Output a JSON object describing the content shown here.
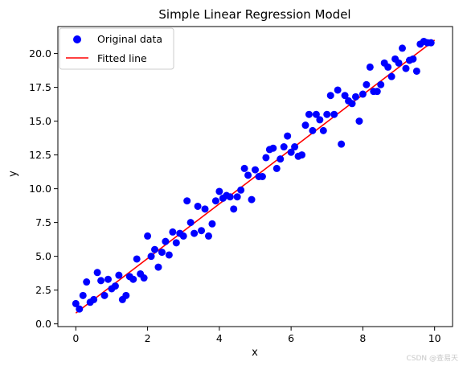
{
  "watermark": "CSDN @查易天",
  "chart_data": {
    "type": "scatter",
    "title": "Simple Linear Regression Model",
    "xlabel": "x",
    "ylabel": "y",
    "xlim": [
      -0.5,
      10.5
    ],
    "ylim": [
      -0.2,
      22.0
    ],
    "xticks": [
      0,
      2,
      4,
      6,
      8,
      10
    ],
    "xtick_labels": [
      "0",
      "2",
      "4",
      "6",
      "8",
      "10"
    ],
    "yticks": [
      0.0,
      2.5,
      5.0,
      7.5,
      10.0,
      12.5,
      15.0,
      17.5,
      20.0
    ],
    "ytick_labels": [
      "0.0",
      "2.5",
      "5.0",
      "7.5",
      "10.0",
      "12.5",
      "15.0",
      "17.5",
      "20.0"
    ],
    "grid": false,
    "legend_position": "top-left",
    "series": [
      {
        "name": "Original data",
        "kind": "scatter",
        "color": "#0000ff",
        "points": [
          [
            0.0,
            1.5
          ],
          [
            0.1,
            1.1
          ],
          [
            0.2,
            2.1
          ],
          [
            0.3,
            3.1
          ],
          [
            0.4,
            1.6
          ],
          [
            0.5,
            1.8
          ],
          [
            0.6,
            3.8
          ],
          [
            0.7,
            3.2
          ],
          [
            0.8,
            2.1
          ],
          [
            0.9,
            3.3
          ],
          [
            1.0,
            2.6
          ],
          [
            1.1,
            2.8
          ],
          [
            1.2,
            3.6
          ],
          [
            1.3,
            1.8
          ],
          [
            1.4,
            2.1
          ],
          [
            1.5,
            3.5
          ],
          [
            1.6,
            3.3
          ],
          [
            1.7,
            4.8
          ],
          [
            1.8,
            3.7
          ],
          [
            1.9,
            3.4
          ],
          [
            2.0,
            6.5
          ],
          [
            2.1,
            5.0
          ],
          [
            2.2,
            5.5
          ],
          [
            2.3,
            4.2
          ],
          [
            2.4,
            5.3
          ],
          [
            2.5,
            6.1
          ],
          [
            2.6,
            5.1
          ],
          [
            2.7,
            6.8
          ],
          [
            2.8,
            6.0
          ],
          [
            2.9,
            6.7
          ],
          [
            3.0,
            6.5
          ],
          [
            3.1,
            9.1
          ],
          [
            3.2,
            7.5
          ],
          [
            3.3,
            6.7
          ],
          [
            3.4,
            8.7
          ],
          [
            3.5,
            6.9
          ],
          [
            3.6,
            8.5
          ],
          [
            3.7,
            6.5
          ],
          [
            3.8,
            7.4
          ],
          [
            3.9,
            9.1
          ],
          [
            4.0,
            9.8
          ],
          [
            4.1,
            9.3
          ],
          [
            4.2,
            9.5
          ],
          [
            4.3,
            9.4
          ],
          [
            4.4,
            8.5
          ],
          [
            4.5,
            9.4
          ],
          [
            4.6,
            9.9
          ],
          [
            4.7,
            11.5
          ],
          [
            4.8,
            11.0
          ],
          [
            4.9,
            9.2
          ],
          [
            5.0,
            11.4
          ],
          [
            5.1,
            10.9
          ],
          [
            5.2,
            10.9
          ],
          [
            5.3,
            12.3
          ],
          [
            5.4,
            12.9
          ],
          [
            5.5,
            13.0
          ],
          [
            5.6,
            11.5
          ],
          [
            5.7,
            12.2
          ],
          [
            5.8,
            13.1
          ],
          [
            5.9,
            13.9
          ],
          [
            6.0,
            12.7
          ],
          [
            6.1,
            13.1
          ],
          [
            6.2,
            12.4
          ],
          [
            6.3,
            12.5
          ],
          [
            6.4,
            14.7
          ],
          [
            6.5,
            15.5
          ],
          [
            6.6,
            14.3
          ],
          [
            6.7,
            15.5
          ],
          [
            6.8,
            15.1
          ],
          [
            6.9,
            14.3
          ],
          [
            7.0,
            15.5
          ],
          [
            7.1,
            16.9
          ],
          [
            7.2,
            15.5
          ],
          [
            7.3,
            17.3
          ],
          [
            7.4,
            13.3
          ],
          [
            7.5,
            16.9
          ],
          [
            7.6,
            16.5
          ],
          [
            7.7,
            16.3
          ],
          [
            7.8,
            16.8
          ],
          [
            7.9,
            15.0
          ],
          [
            8.0,
            17.0
          ],
          [
            8.1,
            17.7
          ],
          [
            8.2,
            19.0
          ],
          [
            8.3,
            17.2
          ],
          [
            8.4,
            17.2
          ],
          [
            8.5,
            17.7
          ],
          [
            8.6,
            19.3
          ],
          [
            8.7,
            19.0
          ],
          [
            8.8,
            18.3
          ],
          [
            8.9,
            19.6
          ],
          [
            9.0,
            19.3
          ],
          [
            9.1,
            20.4
          ],
          [
            9.2,
            18.9
          ],
          [
            9.3,
            19.5
          ],
          [
            9.4,
            19.6
          ],
          [
            9.5,
            18.7
          ],
          [
            9.6,
            20.7
          ],
          [
            9.7,
            20.9
          ],
          [
            9.8,
            20.8
          ],
          [
            9.9,
            20.8
          ]
        ]
      },
      {
        "name": "Fitted line",
        "kind": "line",
        "color": "#ff0000",
        "points": [
          [
            0.0,
            0.8
          ],
          [
            10.0,
            21.0
          ]
        ]
      }
    ]
  }
}
